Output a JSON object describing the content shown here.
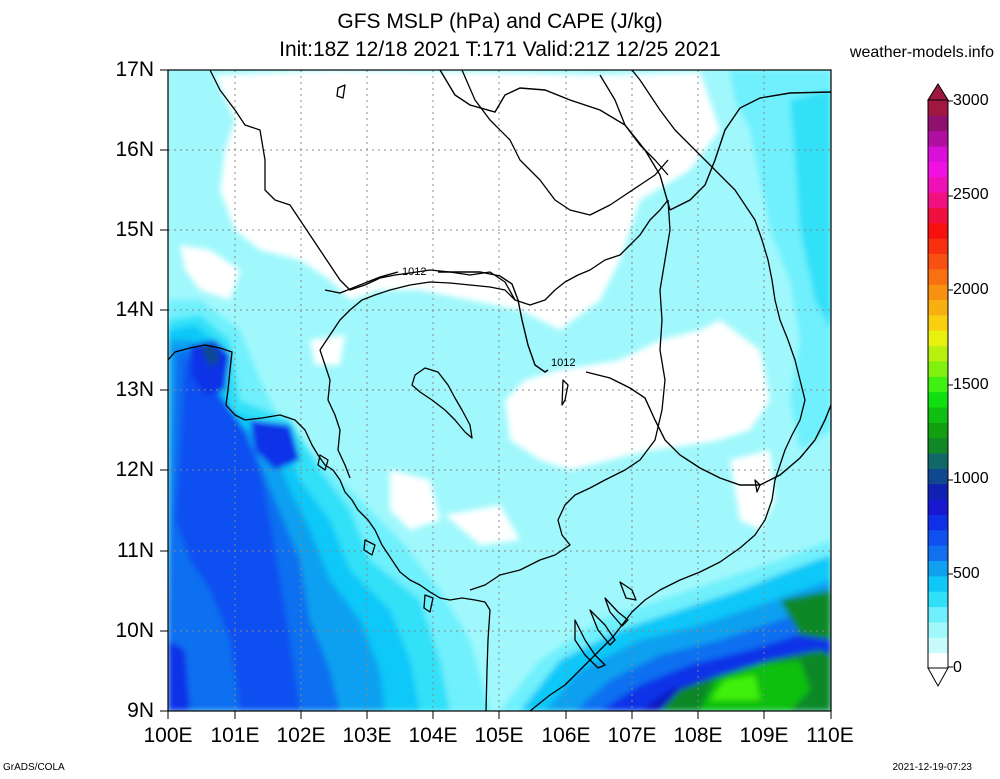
{
  "header": {
    "title_line1": "GFS MSLP (hPa) and CAPE (J/kg)",
    "title_line2": "Init:18Z 12/18 2021 T:171 Valid:21Z 12/25 2021",
    "credit": "weather-models.info"
  },
  "footer": {
    "software": "GrADS/COLA",
    "timestamp": "2021-12-19-07:23"
  },
  "map": {
    "lat_labels": [
      "17N",
      "16N",
      "15N",
      "14N",
      "13N",
      "12N",
      "11N",
      "10N",
      "9N"
    ],
    "lon_labels": [
      "100E",
      "101E",
      "102E",
      "103E",
      "104E",
      "105E",
      "106E",
      "107E",
      "108E",
      "109E",
      "110E"
    ],
    "isobar_labels": [
      "1012",
      "1012"
    ]
  },
  "colorbar": {
    "tick_labels": [
      "3000",
      "2500",
      "2000",
      "1500",
      "1000",
      "500",
      "0"
    ],
    "colors": [
      "#ffffff",
      "#c8fcfc",
      "#a0f8fc",
      "#70f0fc",
      "#30e0f8",
      "#10c8f8",
      "#10a0f0",
      "#1070f0",
      "#1050f0",
      "#1030e8",
      "#1818d0",
      "#1020b0",
      "#104890",
      "#106868",
      "#108828",
      "#10a010",
      "#10c010",
      "#10e010",
      "#40f010",
      "#80f010",
      "#b8f010",
      "#e8f010",
      "#f8d010",
      "#f8b010",
      "#f89010",
      "#f87010",
      "#f85010",
      "#f83010",
      "#f81010",
      "#f01040",
      "#f01080",
      "#f010b8",
      "#f010e0",
      "#d810d8",
      "#b010a0",
      "#901070",
      "#a01840"
    ]
  }
}
